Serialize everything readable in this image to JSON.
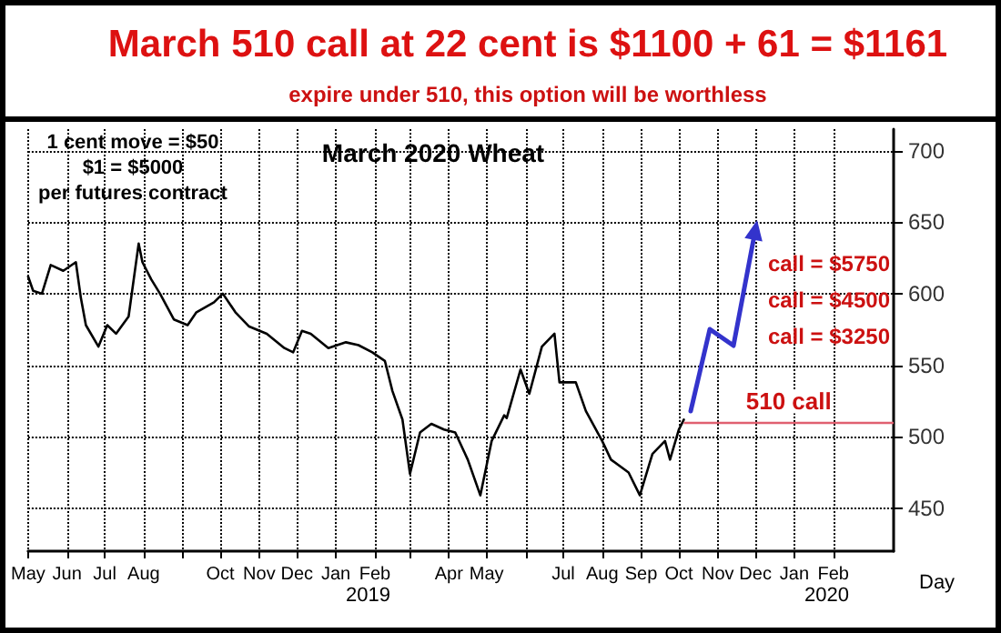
{
  "chart_data": {
    "type": "line",
    "title": "March 510 call at 22 cent is $1100 + 61 = $1161",
    "subtitle": "expire under 510, this option will be worthless",
    "xlabel": "Day",
    "series": [
      {
        "color": "#000000",
        "x": [
          "2018-05-01",
          "2018-05-05",
          "2018-05-12",
          "2018-05-19",
          "2018-05-29",
          "2018-06-08",
          "2018-06-12",
          "2018-06-16",
          "2018-06-26",
          "2018-07-03",
          "2018-07-10",
          "2018-07-20",
          "2018-07-28",
          "2018-07-31",
          "2018-08-07",
          "2018-08-14",
          "2018-08-25",
          "2018-09-05",
          "2018-09-12",
          "2018-09-26",
          "2018-10-03",
          "2018-10-13",
          "2018-10-24",
          "2018-11-07",
          "2018-11-21",
          "2018-11-28",
          "2018-12-05",
          "2018-12-12",
          "2018-12-26",
          "2019-01-09",
          "2019-01-19",
          "2019-01-30",
          "2019-02-09",
          "2019-02-15",
          "2019-02-23",
          "2019-03-01",
          "2019-03-09",
          "2019-03-18",
          "2019-03-28",
          "2019-04-06",
          "2019-04-16",
          "2019-04-26",
          "2019-05-05",
          "2019-05-15",
          "2019-05-17",
          "2019-05-28",
          "2019-06-04",
          "2019-06-14",
          "2019-06-24",
          "2019-06-28",
          "2019-07-11",
          "2019-07-19",
          "2019-08-01",
          "2019-08-08",
          "2019-08-22",
          "2019-08-31",
          "2019-09-10",
          "2019-09-20",
          "2019-09-24",
          "2019-10-01",
          "2019-10-05"
        ],
        "values": [
          612,
          602,
          600,
          620,
          616,
          622,
          597,
          578,
          563,
          578,
          572,
          584,
          635,
          622,
          610,
          600,
          582,
          578,
          587,
          594,
          600,
          587,
          577,
          572,
          562,
          559,
          574,
          572,
          562,
          566,
          564,
          559,
          553,
          532,
          512,
          474,
          503,
          509,
          505,
          503,
          484,
          459,
          497,
          515,
          513,
          547,
          530,
          563,
          572,
          538,
          538,
          518,
          497,
          484,
          475,
          459,
          488,
          497,
          484,
          505,
          512
        ]
      }
    ],
    "xlim": [
      "2018-05-01",
      "2020-03-20"
    ],
    "xticks": [
      {
        "value": "2018-05-01",
        "label": "May"
      },
      {
        "value": "2018-06-01",
        "label": "Jun"
      },
      {
        "value": "2018-07-01",
        "label": "Jul"
      },
      {
        "value": "2018-08-01",
        "label": "Aug"
      },
      {
        "value": "2018-09-01",
        "label": null
      },
      {
        "value": "2018-10-01",
        "label": "Oct"
      },
      {
        "value": "2018-11-01",
        "label": "Nov"
      },
      {
        "value": "2018-12-01",
        "label": "Dec"
      },
      {
        "value": "2019-01-01",
        "label": "Jan"
      },
      {
        "value": "2019-02-01",
        "label": "Feb"
      },
      {
        "value": "2019-03-01",
        "label": null
      },
      {
        "value": "2019-04-01",
        "label": "Apr"
      },
      {
        "value": "2019-05-01",
        "label": "May"
      },
      {
        "value": "2019-06-01",
        "label": null
      },
      {
        "value": "2019-07-01",
        "label": "Jul"
      },
      {
        "value": "2019-08-01",
        "label": "Aug"
      },
      {
        "value": "2019-09-01",
        "label": "Sep"
      },
      {
        "value": "2019-10-01",
        "label": "Oct"
      },
      {
        "value": "2019-11-01",
        "label": "Nov"
      },
      {
        "value": "2019-12-01",
        "label": "Dec"
      },
      {
        "value": "2020-01-01",
        "label": "Jan"
      },
      {
        "value": "2020-02-01",
        "label": "Feb"
      }
    ],
    "ylim": [
      420,
      715
    ],
    "yticks": [
      450,
      500,
      550,
      600,
      650,
      700
    ],
    "grid": true,
    "ref_lines": [
      {
        "axis": "y",
        "value": 510,
        "label": "510 call",
        "color": "#e06070"
      }
    ],
    "annotations": [
      "1 cent move = $50",
      "$1 = $5000",
      "per futures contract",
      "March 2020 Wheat",
      "call = $5750",
      "call = $4500",
      "call = $3250",
      "2019",
      "2020"
    ]
  }
}
